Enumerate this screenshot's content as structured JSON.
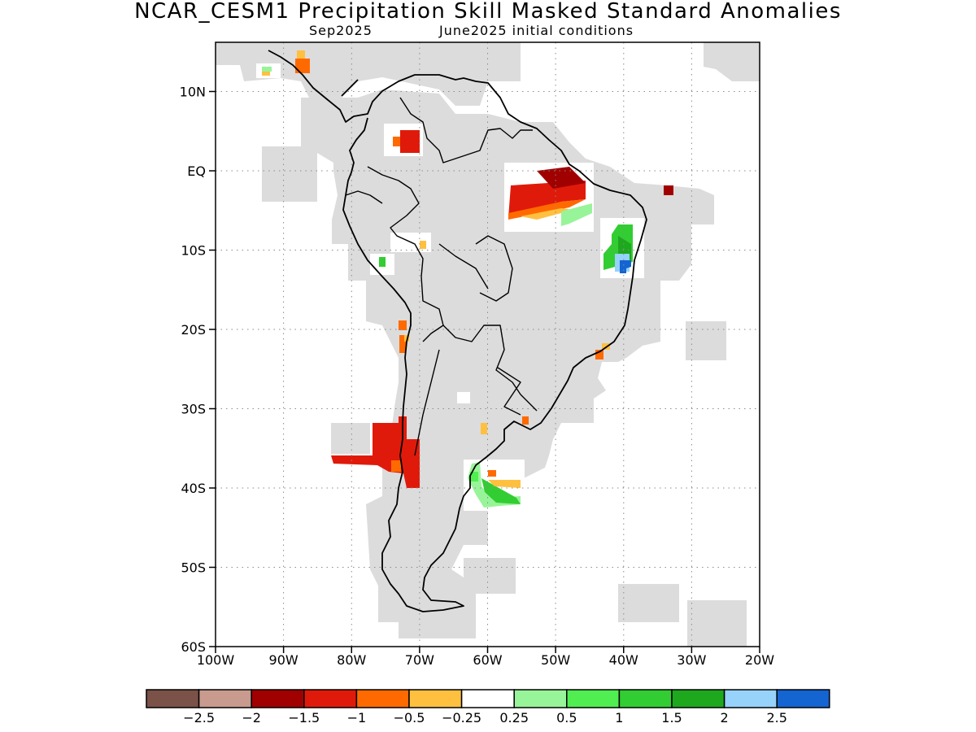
{
  "title": "NCAR_CESM1 Precipitation Skill Masked Standard Anomalies",
  "subtitle_left": "Sep2025",
  "subtitle_right": "June2025 initial conditions",
  "map": {
    "lon_range": [
      -100,
      -20
    ],
    "lat_range": [
      -60,
      6
    ],
    "lat_ticks": [
      {
        "v": 10,
        "label": "10N"
      },
      {
        "v": 0,
        "label": "EQ"
      },
      {
        "v": -10,
        "label": "10S"
      },
      {
        "v": -20,
        "label": "20S"
      },
      {
        "v": -30,
        "label": "30S"
      },
      {
        "v": -40,
        "label": "40S"
      },
      {
        "v": -50,
        "label": "50S"
      },
      {
        "v": -60,
        "label": "60S"
      }
    ],
    "lon_ticks": [
      {
        "v": -100,
        "label": "100W"
      },
      {
        "v": -90,
        "label": "90W"
      },
      {
        "v": -80,
        "label": "80W"
      },
      {
        "v": -70,
        "label": "70W"
      },
      {
        "v": -60,
        "label": "60W"
      },
      {
        "v": -50,
        "label": "50W"
      },
      {
        "v": -40,
        "label": "40W"
      },
      {
        "v": -30,
        "label": "30W"
      },
      {
        "v": -20,
        "label": "20W"
      }
    ],
    "grid": "dotted",
    "skill_mask_color": "#dcdcdc",
    "coastline_color": "#000000"
  },
  "colorbar": {
    "colors": [
      "#7a5248",
      "#c99a8e",
      "#a00000",
      "#e01a0a",
      "#ff6a00",
      "#ffc040",
      "#ffffff",
      "#98f498",
      "#50ee50",
      "#32cd32",
      "#1ea81e",
      "#96d2fa",
      "#1464d2"
    ],
    "labels": [
      "−2.5",
      "−2",
      "−1.5",
      "−1",
      "−0.5",
      "−0.25",
      "0.25",
      "0.5",
      "1",
      "1.5",
      "2",
      "2.5"
    ]
  },
  "anomalies": [
    {
      "lon": -73.5,
      "lat": 6.8,
      "value": -1.2
    },
    {
      "lon": -75.0,
      "lat": 6.8,
      "value": -0.6
    },
    {
      "lon": -52.0,
      "lat": -3.2,
      "value": -1.2
    },
    {
      "lon": -46.5,
      "lat": -2.8,
      "value": -1.7
    },
    {
      "lon": -50.0,
      "lat": -5.0,
      "value": -0.6
    },
    {
      "lon": -46.0,
      "lat": -5.3,
      "value": 0.6
    },
    {
      "lon": -40.5,
      "lat": -9.5,
      "value": 1.2
    },
    {
      "lon": -40.0,
      "lat": -12.2,
      "value": 2.6
    },
    {
      "lon": -34.5,
      "lat": -2.4,
      "value": -1.8
    },
    {
      "lon": -73.0,
      "lat": -36.0,
      "value": -1.2
    },
    {
      "lon": -77.0,
      "lat": -36.5,
      "value": -1.2
    },
    {
      "lon": -71.5,
      "lat": -33.5,
      "value": -1.2
    },
    {
      "lon": -58.0,
      "lat": -40.3,
      "value": 0.8
    },
    {
      "lon": -57.0,
      "lat": -39.0,
      "value": -0.3
    },
    {
      "lon": -72.5,
      "lat": -22.5,
      "value": -0.7
    },
    {
      "lon": -76.0,
      "lat": -11.5,
      "value": 0.8
    },
    {
      "lon": -88.0,
      "lat": 13.0,
      "value": -0.5
    },
    {
      "lon": -44.0,
      "lat": -23.0,
      "value": -0.4
    }
  ]
}
